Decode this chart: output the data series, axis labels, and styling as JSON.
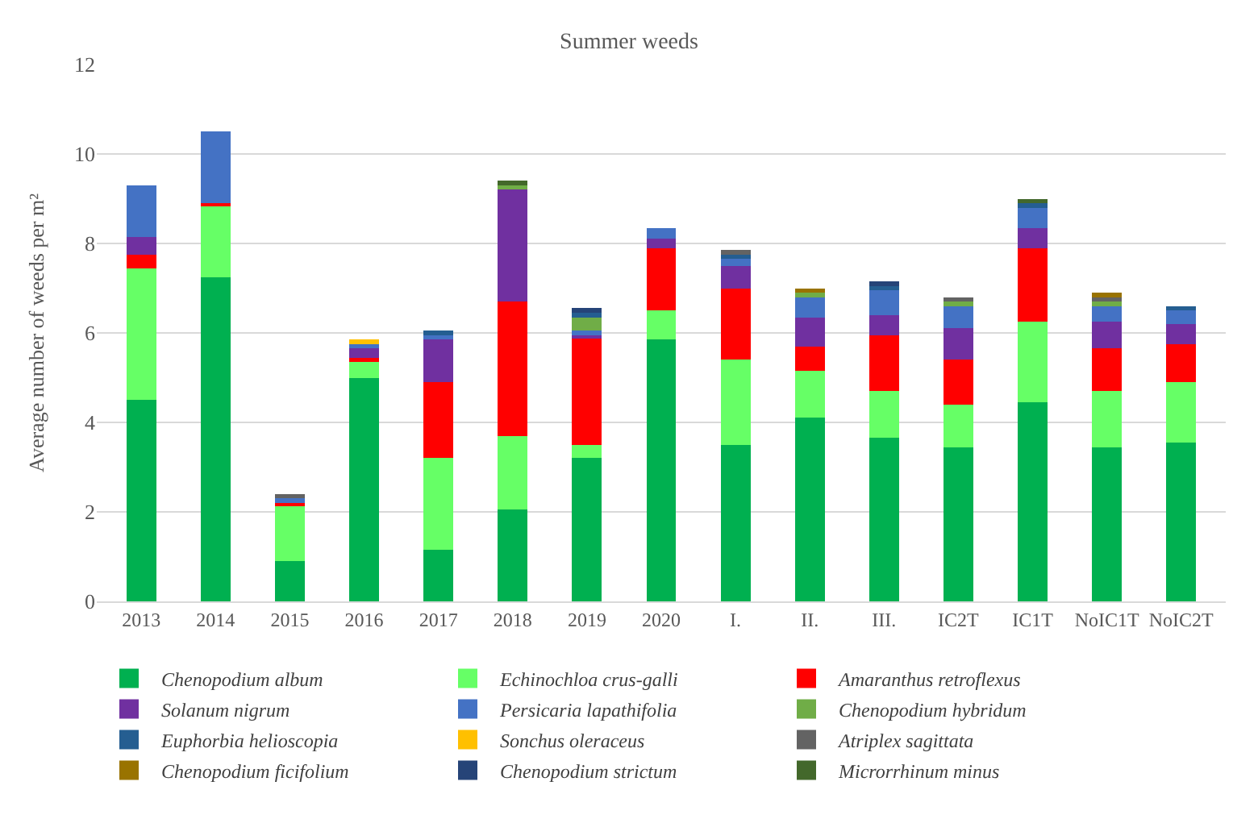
{
  "chart_data": {
    "type": "bar",
    "title": "Summer weeds",
    "ylabel": "Average number of weeds per m²",
    "stacked": true,
    "categories": [
      "2013",
      "2014",
      "2015",
      "2016",
      "2017",
      "2018",
      "2019",
      "2020",
      "I.",
      "II.",
      "III.",
      "IC2T",
      "IC1T",
      "NoIC1T",
      "NoIC2T"
    ],
    "series": [
      {
        "name": "Chenopodium album",
        "color": "#00b050",
        "values": [
          4.5,
          7.25,
          0.9,
          5.0,
          1.15,
          2.05,
          3.2,
          5.85,
          3.5,
          4.1,
          3.65,
          3.45,
          4.45,
          3.45,
          3.55
        ]
      },
      {
        "name": "Echinochloa crus-galli",
        "color": "#66ff66",
        "values": [
          2.95,
          1.6,
          1.25,
          0.35,
          2.05,
          1.65,
          0.3,
          0.65,
          1.9,
          1.05,
          1.05,
          0.95,
          1.8,
          1.25,
          1.35
        ]
      },
      {
        "name": "Amaranthus retroflexus",
        "color": "#ff0000",
        "values": [
          0.3,
          0.05,
          0.05,
          0.1,
          1.7,
          3.0,
          2.4,
          1.4,
          1.6,
          0.55,
          1.25,
          1.0,
          1.65,
          0.95,
          0.85
        ]
      },
      {
        "name": "Solanum nigrum",
        "color": "#7030a0",
        "values": [
          0.4,
          0,
          0,
          0.2,
          0.95,
          2.5,
          0.05,
          0.2,
          0.5,
          0.65,
          0.45,
          0.7,
          0.45,
          0.6,
          0.45
        ]
      },
      {
        "name": "Persicaria lapathifolia",
        "color": "#4472c4",
        "values": [
          1.15,
          1.6,
          0.1,
          0.1,
          0.1,
          0,
          0.1,
          0.25,
          0.15,
          0.45,
          0.55,
          0.5,
          0.45,
          0.35,
          0.3
        ]
      },
      {
        "name": "Chenopodium hybridum",
        "color": "#70ad47",
        "values": [
          0,
          0,
          0,
          0,
          0,
          0.1,
          0.3,
          0,
          0,
          0.1,
          0,
          0.1,
          0,
          0.1,
          0
        ]
      },
      {
        "name": "Euphorbia helioscopia",
        "color": "#255e91",
        "values": [
          0,
          0,
          0,
          0,
          0.1,
          0,
          0.1,
          0,
          0.1,
          0,
          0.1,
          0,
          0.1,
          0,
          0.1
        ]
      },
      {
        "name": "Sonchus oleraceus",
        "color": "#ffc000",
        "values": [
          0,
          0,
          0,
          0.1,
          0,
          0,
          0,
          0,
          0,
          0,
          0,
          0,
          0,
          0,
          0
        ]
      },
      {
        "name": "Atriplex sagittata",
        "color": "#636363",
        "values": [
          0,
          0,
          0.1,
          0,
          0,
          0,
          0,
          0,
          0.1,
          0,
          0,
          0.1,
          0,
          0.1,
          0
        ]
      },
      {
        "name": "Chenopodium ficifolium",
        "color": "#997300",
        "values": [
          0,
          0,
          0,
          0,
          0,
          0,
          0,
          0,
          0,
          0.1,
          0,
          0,
          0,
          0.1,
          0
        ]
      },
      {
        "name": "Chenopodium strictum",
        "color": "#264478",
        "values": [
          0,
          0,
          0,
          0,
          0,
          0,
          0.1,
          0,
          0,
          0,
          0.1,
          0,
          0,
          0,
          0
        ]
      },
      {
        "name": "Microrrhinum minus",
        "color": "#43682b",
        "values": [
          0,
          0,
          0,
          0,
          0,
          0.1,
          0,
          0,
          0,
          0,
          0,
          0,
          0.1,
          0,
          0
        ]
      }
    ],
    "ylim": [
      0,
      12
    ],
    "yticks": [
      0,
      2,
      4,
      6,
      8,
      10,
      12
    ],
    "grid": "y",
    "legend": "bottom"
  }
}
